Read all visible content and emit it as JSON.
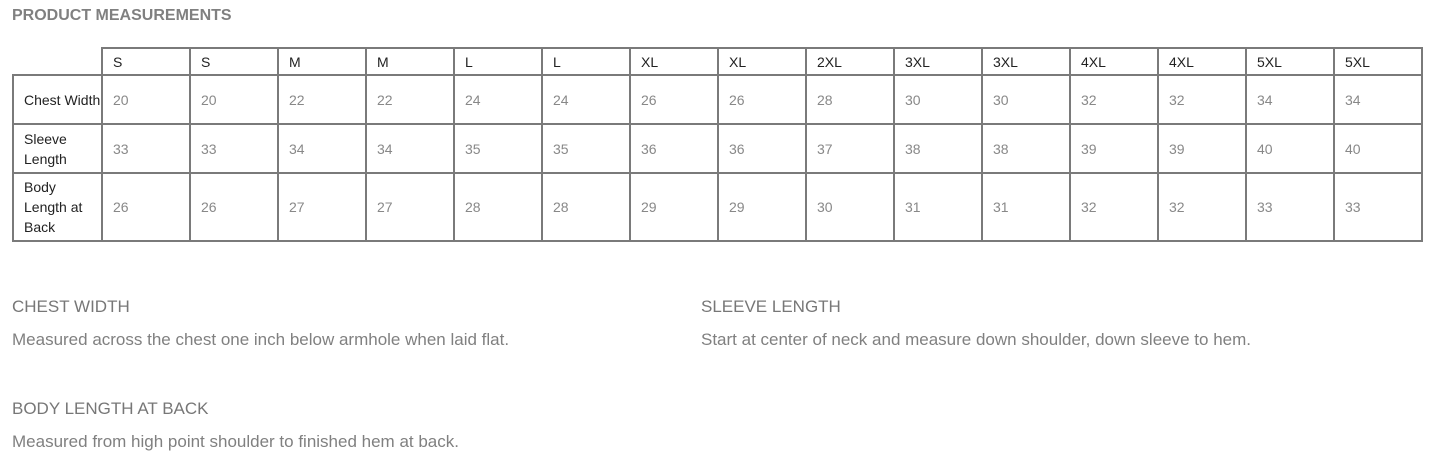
{
  "title": "PRODUCT MEASUREMENTS",
  "table": {
    "sizes": [
      "S",
      "S",
      "M",
      "M",
      "L",
      "L",
      "XL",
      "XL",
      "2XL",
      "3XL",
      "3XL",
      "4XL",
      "4XL",
      "5XL",
      "5XL"
    ],
    "rows": [
      {
        "label": "Chest Width",
        "values": [
          "20",
          "20",
          "22",
          "22",
          "24",
          "24",
          "26",
          "26",
          "28",
          "30",
          "30",
          "32",
          "32",
          "34",
          "34"
        ]
      },
      {
        "label": "Sleeve Length",
        "values": [
          "33",
          "33",
          "34",
          "34",
          "35",
          "35",
          "36",
          "36",
          "37",
          "38",
          "38",
          "39",
          "39",
          "40",
          "40"
        ]
      },
      {
        "label": "Body Length at Back",
        "values": [
          "26",
          "26",
          "27",
          "27",
          "28",
          "28",
          "29",
          "29",
          "30",
          "31",
          "31",
          "32",
          "32",
          "33",
          "33"
        ]
      }
    ]
  },
  "sections": [
    {
      "heading": "CHEST WIDTH",
      "text": "Measured across the chest one inch below armhole when laid flat."
    },
    {
      "heading": "SLEEVE LENGTH",
      "text": "Start at center of neck and measure down shoulder, down sleeve to hem."
    },
    {
      "heading": "BODY LENGTH AT BACK",
      "text": "Measured from high point shoulder to finished hem at back."
    }
  ]
}
